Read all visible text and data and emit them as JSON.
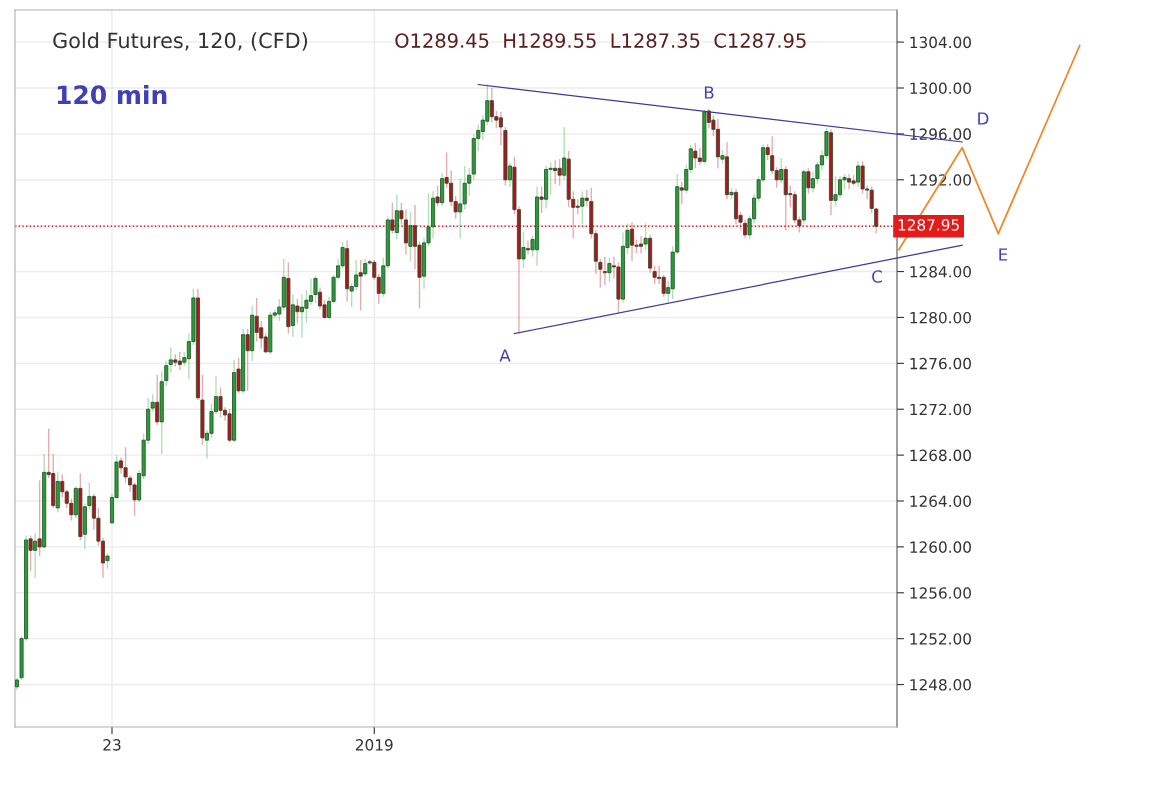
{
  "chart_data": {
    "type": "candlestick",
    "title": "Gold Futures, 120, (CFD)",
    "subtitle": "O1289.45  H1289.55  L1287.35  C1287.95",
    "annotations": [
      "120 min",
      "A",
      "B",
      "C",
      "D",
      "E"
    ],
    "categories": [
      null,
      null,
      null,
      null,
      null,
      null,
      null,
      null,
      null,
      null,
      null,
      null,
      null,
      null,
      null,
      null,
      null,
      null,
      null,
      null,
      null,
      "23",
      null,
      null,
      null,
      null,
      null,
      null,
      null,
      null,
      null,
      null,
      null,
      null,
      null,
      null,
      null,
      null,
      null,
      null,
      null,
      null,
      null,
      null,
      null,
      null,
      null,
      null,
      null,
      null,
      null,
      null,
      null,
      null,
      null,
      null,
      null,
      null,
      null,
      null,
      null,
      null,
      null,
      null,
      null,
      null,
      null,
      null,
      null,
      null,
      null,
      null,
      null,
      null,
      null,
      null,
      null,
      null,
      null,
      "2019",
      null,
      null,
      null,
      null,
      null,
      null,
      null,
      null,
      null,
      null,
      null,
      null,
      null,
      null,
      null,
      null,
      null,
      null,
      null,
      null,
      null,
      null,
      null,
      null,
      null,
      null,
      null,
      null,
      null,
      null,
      null,
      null,
      null,
      null,
      null,
      null,
      null,
      null,
      null,
      null,
      null,
      null,
      null,
      null,
      null,
      null,
      null,
      null,
      null,
      null,
      null,
      null,
      null,
      null,
      null,
      null,
      null,
      null,
      null,
      null,
      null,
      null,
      null,
      null,
      null,
      null,
      null,
      null,
      null,
      null,
      null,
      null,
      null,
      null,
      null,
      null,
      null,
      null,
      null,
      null,
      null,
      null,
      null,
      null,
      null,
      null,
      null,
      null,
      null,
      null,
      null,
      null,
      null,
      null,
      null,
      null,
      null,
      null,
      null,
      null,
      null,
      null,
      null,
      null,
      null,
      null,
      null,
      null,
      null,
      null,
      null,
      null,
      null,
      null,
      null,
      null,
      null,
      null,
      null,
      null,
      null,
      null,
      null,
      null,
      null,
      null,
      null,
      null,
      null,
      null,
      null,
      null,
      null,
      null,
      null,
      null,
      null,
      null,
      null,
      null,
      null,
      null,
      null,
      null,
      null,
      null,
      null,
      null,
      null,
      null,
      null,
      null,
      null,
      null,
      null,
      null
    ],
    "ohlc": [
      [
        1247.8,
        1248.6,
        1247.5,
        1248.4
      ],
      [
        1248.6,
        1252.2,
        1248.4,
        1252.0
      ],
      [
        1252.0,
        1261.0,
        1251.8,
        1260.6
      ],
      [
        1260.7,
        1261.0,
        1257.9,
        1259.7
      ],
      [
        1259.7,
        1261.2,
        1257.3,
        1260.5
      ],
      [
        1260.7,
        1265.8,
        1259.2,
        1260.0
      ],
      [
        1260.0,
        1268.1,
        1259.9,
        1266.5
      ],
      [
        1266.5,
        1270.3,
        1266.0,
        1266.3
      ],
      [
        1266.4,
        1268.1,
        1263.4,
        1263.6
      ],
      [
        1263.4,
        1266.5,
        1263.0,
        1265.7
      ],
      [
        1265.7,
        1266.3,
        1264.3,
        1264.8
      ],
      [
        1264.8,
        1265.0,
        1263.4,
        1263.8
      ],
      [
        1263.8,
        1264.2,
        1262.3,
        1262.8
      ],
      [
        1262.8,
        1265.3,
        1262.5,
        1265.1
      ],
      [
        1265.1,
        1266.4,
        1260.6,
        1260.9
      ],
      [
        1261.1,
        1263.8,
        1259.8,
        1263.5
      ],
      [
        1263.6,
        1265.6,
        1263.3,
        1264.4
      ],
      [
        1264.4,
        1264.6,
        1261.5,
        1262.5
      ],
      [
        1262.5,
        1263.4,
        1260.1,
        1260.5
      ],
      [
        1260.5,
        1260.8,
        1257.3,
        1258.6
      ],
      [
        1258.8,
        1259.4,
        1258.1,
        1259.2
      ],
      [
        1262.1,
        1264.6,
        1262.0,
        1264.3
      ],
      [
        1264.3,
        1268.0,
        1264.2,
        1267.4
      ],
      [
        1267.5,
        1267.8,
        1266.4,
        1266.9
      ],
      [
        1266.9,
        1268.7,
        1265.6,
        1266.1
      ],
      [
        1266.0,
        1266.2,
        1264.8,
        1265.4
      ],
      [
        1265.4,
        1265.6,
        1262.7,
        1264.1
      ],
      [
        1264.1,
        1266.7,
        1263.9,
        1266.4
      ],
      [
        1266.2,
        1269.9,
        1265.9,
        1269.3
      ],
      [
        1269.3,
        1273.0,
        1269.0,
        1272.0
      ],
      [
        1272.1,
        1273.3,
        1271.8,
        1272.6
      ],
      [
        1272.6,
        1275.0,
        1270.6,
        1270.9
      ],
      [
        1270.9,
        1275.3,
        1268.1,
        1274.4
      ],
      [
        1274.5,
        1276.2,
        1274.0,
        1275.8
      ],
      [
        1275.9,
        1277.4,
        1275.2,
        1276.3
      ],
      [
        1276.3,
        1276.8,
        1275.7,
        1276.1
      ],
      [
        1276.2,
        1277.0,
        1275.4,
        1275.9
      ],
      [
        1276.1,
        1277.0,
        1275.8,
        1276.5
      ],
      [
        1276.4,
        1278.6,
        1274.6,
        1277.9
      ],
      [
        1277.9,
        1282.5,
        1277.6,
        1281.7
      ],
      [
        1281.7,
        1282.5,
        1272.8,
        1273.0
      ],
      [
        1272.8,
        1275.0,
        1268.9,
        1269.5
      ],
      [
        1269.3,
        1270.2,
        1267.7,
        1269.9
      ],
      [
        1269.9,
        1272.5,
        1269.5,
        1271.8
      ],
      [
        1271.8,
        1274.9,
        1271.6,
        1273.1
      ],
      [
        1273.1,
        1273.9,
        1271.3,
        1271.9
      ],
      [
        1271.9,
        1272.2,
        1271.0,
        1271.5
      ],
      [
        1271.6,
        1272.0,
        1269.1,
        1269.3
      ],
      [
        1269.3,
        1276.3,
        1269.1,
        1275.2
      ],
      [
        1275.5,
        1276.5,
        1273.4,
        1273.6
      ],
      [
        1273.6,
        1279.0,
        1273.4,
        1278.5
      ],
      [
        1278.5,
        1279.0,
        1273.6,
        1277.1
      ],
      [
        1277.1,
        1281.0,
        1276.2,
        1280.2
      ],
      [
        1280.1,
        1281.7,
        1277.9,
        1278.7
      ],
      [
        1279.1,
        1279.7,
        1277.3,
        1278.2
      ],
      [
        1278.3,
        1278.6,
        1276.9,
        1277.0
      ],
      [
        1277.0,
        1280.5,
        1276.8,
        1280.2
      ],
      [
        1280.2,
        1280.7,
        1279.9,
        1280.4
      ],
      [
        1280.3,
        1281.6,
        1279.7,
        1280.9
      ],
      [
        1280.9,
        1285.1,
        1280.6,
        1283.5
      ],
      [
        1283.4,
        1284.8,
        1278.6,
        1279.2
      ],
      [
        1279.3,
        1282.0,
        1278.3,
        1281.1
      ],
      [
        1281.0,
        1281.6,
        1279.5,
        1280.5
      ],
      [
        1280.5,
        1282.0,
        1278.2,
        1280.9
      ],
      [
        1280.8,
        1282.4,
        1279.5,
        1281.5
      ],
      [
        1281.4,
        1283.4,
        1281.1,
        1281.9
      ],
      [
        1282.0,
        1283.6,
        1281.3,
        1283.4
      ],
      [
        1282.2,
        1282.6,
        1280.7,
        1281.0
      ],
      [
        1281.1,
        1281.5,
        1279.9,
        1280.0
      ],
      [
        1280.0,
        1281.8,
        1279.9,
        1281.4
      ],
      [
        1281.4,
        1283.7,
        1281.2,
        1283.5
      ],
      [
        1283.5,
        1285.1,
        1283.3,
        1284.5
      ],
      [
        1284.5,
        1286.6,
        1284.3,
        1286.1
      ],
      [
        1286.0,
        1286.7,
        1281.4,
        1282.5
      ],
      [
        1282.3,
        1283.0,
        1280.9,
        1282.7
      ],
      [
        1282.7,
        1285.0,
        1282.4,
        1283.7
      ],
      [
        1283.9,
        1285.0,
        1280.6,
        1283.6
      ],
      [
        1283.8,
        1285.1,
        1283.6,
        1284.7
      ],
      [
        1284.85,
        1285.0,
        1284.6,
        1284.75
      ],
      [
        1284.8,
        1285.0,
        1283.3,
        1283.5
      ],
      [
        1283.5,
        1283.8,
        1281.2,
        1282.1
      ],
      [
        1282.1,
        1285.2,
        1281.8,
        1284.5
      ],
      [
        1284.5,
        1288.8,
        1284.3,
        1288.5
      ],
      [
        1288.5,
        1290.0,
        1287.3,
        1287.6
      ],
      [
        1287.4,
        1290.7,
        1286.8,
        1289.3
      ],
      [
        1289.3,
        1290.0,
        1288.1,
        1288.6
      ],
      [
        1288.5,
        1289.4,
        1285.5,
        1286.5
      ],
      [
        1286.2,
        1289.2,
        1284.9,
        1288.0
      ],
      [
        1288.0,
        1289.8,
        1284.2,
        1286.2
      ],
      [
        1286.3,
        1286.6,
        1280.8,
        1283.5
      ],
      [
        1283.6,
        1287.0,
        1282.5,
        1286.5
      ],
      [
        1286.5,
        1290.8,
        1286.2,
        1287.9
      ],
      [
        1287.9,
        1291.0,
        1286.9,
        1290.4
      ],
      [
        1290.5,
        1291.5,
        1289.7,
        1290.0
      ],
      [
        1290.0,
        1292.6,
        1289.7,
        1292.1
      ],
      [
        1292.2,
        1294.4,
        1291.3,
        1291.7
      ],
      [
        1291.7,
        1292.8,
        1289.7,
        1290.1
      ],
      [
        1290.1,
        1290.6,
        1288.6,
        1289.2
      ],
      [
        1289.2,
        1292.1,
        1286.9,
        1289.9
      ],
      [
        1289.9,
        1293.2,
        1289.4,
        1291.7
      ],
      [
        1291.7,
        1293.0,
        1290.6,
        1292.4
      ],
      [
        1292.5,
        1296.0,
        1292.0,
        1295.6
      ],
      [
        1295.6,
        1296.8,
        1294.5,
        1296.3
      ],
      [
        1296.2,
        1297.6,
        1295.5,
        1297.2
      ],
      [
        1297.1,
        1300.3,
        1296.8,
        1298.9
      ],
      [
        1298.9,
        1300.0,
        1297.0,
        1297.5
      ],
      [
        1297.5,
        1298.0,
        1296.5,
        1297.2
      ],
      [
        1297.4,
        1297.9,
        1295.0,
        1296.6
      ],
      [
        1296.3,
        1296.6,
        1291.5,
        1292.0
      ],
      [
        1292.0,
        1293.5,
        1291.4,
        1293.2
      ],
      [
        1293.1,
        1294.0,
        1289.0,
        1289.4
      ],
      [
        1289.4,
        1289.7,
        1278.6,
        1285.1
      ],
      [
        1285.1,
        1287.5,
        1284.3,
        1286.1
      ],
      [
        1286.0,
        1286.7,
        1285.5,
        1285.9
      ],
      [
        1285.9,
        1287.1,
        1285.3,
        1286.8
      ],
      [
        1285.9,
        1291.4,
        1284.5,
        1290.5
      ],
      [
        1290.5,
        1291.4,
        1289.1,
        1290.3
      ],
      [
        1290.3,
        1293.2,
        1289.5,
        1292.9
      ],
      [
        1292.9,
        1293.5,
        1290.7,
        1293.0
      ],
      [
        1293.0,
        1293.7,
        1291.6,
        1292.8
      ],
      [
        1293.0,
        1293.8,
        1291.5,
        1292.4
      ],
      [
        1292.4,
        1296.6,
        1292.0,
        1293.9
      ],
      [
        1293.8,
        1294.5,
        1289.6,
        1290.3
      ],
      [
        1290.3,
        1291.0,
        1286.9,
        1289.6
      ],
      [
        1289.7,
        1290.3,
        1289.0,
        1289.6
      ],
      [
        1289.7,
        1291.0,
        1288.1,
        1290.4
      ],
      [
        1290.4,
        1291.1,
        1289.7,
        1290.2
      ],
      [
        1290.1,
        1291.3,
        1286.9,
        1287.3
      ],
      [
        1287.3,
        1287.6,
        1283.8,
        1284.9
      ],
      [
        1284.8,
        1285.1,
        1282.6,
        1284.2
      ],
      [
        1284.0,
        1285.3,
        1282.8,
        1283.9
      ],
      [
        1283.9,
        1285.2,
        1283.1,
        1284.7
      ],
      [
        1284.5,
        1285.3,
        1283.4,
        1284.4
      ],
      [
        1284.4,
        1284.8,
        1280.4,
        1281.6
      ],
      [
        1281.6,
        1287.4,
        1281.3,
        1286.2
      ],
      [
        1286.1,
        1288.2,
        1285.5,
        1287.6
      ],
      [
        1287.7,
        1288.3,
        1284.9,
        1286.3
      ],
      [
        1286.3,
        1286.8,
        1285.6,
        1286.2
      ],
      [
        1286.4,
        1287.1,
        1285.6,
        1286.2
      ],
      [
        1286.4,
        1288.2,
        1285.9,
        1286.9
      ],
      [
        1286.9,
        1287.2,
        1283.9,
        1284.3
      ],
      [
        1284.0,
        1284.5,
        1282.9,
        1283.5
      ],
      [
        1283.5,
        1284.5,
        1282.9,
        1283.4
      ],
      [
        1283.5,
        1283.7,
        1281.8,
        1282.1
      ],
      [
        1282.1,
        1283.2,
        1281.3,
        1282.6
      ],
      [
        1282.5,
        1286.2,
        1281.6,
        1285.7
      ],
      [
        1285.7,
        1292.5,
        1285.5,
        1291.4
      ],
      [
        1291.3,
        1291.8,
        1289.9,
        1291.1
      ],
      [
        1291.1,
        1293.3,
        1290.8,
        1292.9
      ],
      [
        1292.9,
        1295.0,
        1292.6,
        1294.7
      ],
      [
        1294.5,
        1295.2,
        1293.0,
        1293.9
      ],
      [
        1293.9,
        1294.8,
        1293.3,
        1293.6
      ],
      [
        1293.6,
        1298.1,
        1293.4,
        1297.9
      ],
      [
        1298.0,
        1298.2,
        1296.5,
        1297.0
      ],
      [
        1297.2,
        1297.6,
        1295.8,
        1296.4
      ],
      [
        1296.4,
        1297.3,
        1293.0,
        1294.0
      ],
      [
        1293.8,
        1294.6,
        1293.4,
        1294.1
      ],
      [
        1294.0,
        1295.3,
        1290.3,
        1290.7
      ],
      [
        1290.7,
        1291.3,
        1290.3,
        1290.9
      ],
      [
        1290.9,
        1291.2,
        1288.1,
        1288.6
      ],
      [
        1288.9,
        1289.2,
        1287.6,
        1288.3
      ],
      [
        1288.2,
        1288.5,
        1286.9,
        1287.2
      ],
      [
        1287.2,
        1288.9,
        1286.8,
        1288.6
      ],
      [
        1288.6,
        1290.8,
        1288.2,
        1290.4
      ],
      [
        1290.4,
        1292.3,
        1290.1,
        1292.0
      ],
      [
        1292.0,
        1295.1,
        1291.8,
        1294.8
      ],
      [
        1294.8,
        1295.1,
        1293.7,
        1294.2
      ],
      [
        1294.1,
        1295.8,
        1292.5,
        1292.8
      ],
      [
        1292.8,
        1293.1,
        1291.3,
        1292.0
      ],
      [
        1292.0,
        1293.9,
        1291.7,
        1292.9
      ],
      [
        1292.9,
        1293.2,
        1287.6,
        1290.7
      ],
      [
        1290.8,
        1291.5,
        1289.6,
        1290.7
      ],
      [
        1290.7,
        1291.0,
        1288.2,
        1288.5
      ],
      [
        1288.5,
        1288.8,
        1287.4,
        1288.0
      ],
      [
        1288.5,
        1292.9,
        1288.2,
        1292.7
      ],
      [
        1292.7,
        1293.0,
        1290.8,
        1291.3
      ],
      [
        1291.3,
        1292.7,
        1290.9,
        1292.1
      ],
      [
        1292.1,
        1293.6,
        1291.6,
        1293.3
      ],
      [
        1293.3,
        1294.6,
        1292.8,
        1294.1
      ],
      [
        1294.1,
        1296.5,
        1293.8,
        1296.2
      ],
      [
        1296.1,
        1296.4,
        1288.9,
        1290.2
      ],
      [
        1290.2,
        1292.3,
        1289.7,
        1290.7
      ],
      [
        1290.7,
        1292.3,
        1290.4,
        1292.0
      ],
      [
        1292.0,
        1292.5,
        1291.1,
        1292.2
      ],
      [
        1292.1,
        1292.5,
        1291.2,
        1291.8
      ],
      [
        1291.9,
        1292.4,
        1291.5,
        1291.7
      ],
      [
        1291.8,
        1293.6,
        1291.4,
        1293.2
      ],
      [
        1293.2,
        1293.6,
        1290.8,
        1291.2
      ],
      [
        1291.2,
        1291.5,
        1290.3,
        1291.1
      ],
      [
        1291.1,
        1291.4,
        1289.1,
        1289.5
      ],
      [
        1289.45,
        1289.55,
        1287.35,
        1287.95
      ],
      null,
      null,
      null,
      null,
      null,
      null,
      null,
      null,
      null,
      null,
      null,
      null,
      null,
      null,
      null,
      null,
      null,
      null,
      null,
      null,
      null,
      null,
      null,
      null,
      null,
      null,
      null,
      null,
      null,
      null,
      null,
      null,
      null,
      null,
      null,
      null,
      null,
      null,
      null,
      null,
      null,
      null,
      null,
      null,
      null
    ],
    "colors": [
      "#23a234",
      "#23a234",
      "#23a234",
      "#b1141b",
      "#23a234",
      "#b1141b",
      "#23a234",
      "#b1141b",
      "#b1141b",
      "#23a234",
      "#b1141b",
      "#b1141b",
      "#b1141b",
      "#23a234",
      "#b1141b",
      "#23a234",
      "#23a234",
      "#b1141b",
      "#b1141b",
      "#b1141b",
      "#23a234",
      "#23a234",
      "#23a234",
      "#b1141b",
      "#b1141b",
      "#b1141b",
      "#b1141b",
      "#23a234",
      "#23a234",
      "#23a234",
      "#23a234",
      "#b1141b",
      "#23a234",
      "#23a234",
      "#23a234",
      "#b1141b",
      "#b1141b",
      "#23a234",
      "#23a234",
      "#23a234",
      "#b1141b",
      "#b1141b",
      "#23a234",
      "#23a234",
      "#23a234",
      "#b1141b",
      "#b1141b",
      "#b1141b",
      "#23a234",
      "#b1141b",
      "#23a234",
      "#b1141b",
      "#23a234",
      "#b1141b",
      "#b1141b",
      "#b1141b",
      "#23a234",
      "#23a234",
      "#23a234",
      "#23a234",
      "#b1141b",
      "#23a234",
      "#b1141b",
      "#23a234",
      "#23a234",
      "#23a234",
      "#23a234",
      "#b1141b",
      "#b1141b",
      "#23a234",
      "#23a234",
      "#23a234",
      "#23a234",
      "#b1141b",
      "#23a234",
      "#23a234",
      "#b1141b",
      "#23a234",
      "#b1141b",
      "#b1141b",
      "#b1141b",
      "#23a234",
      "#23a234",
      "#b1141b",
      "#23a234",
      "#b1141b",
      "#b1141b",
      "#23a234",
      "#b1141b",
      "#b1141b",
      "#23a234",
      "#23a234",
      "#23a234",
      "#b1141b",
      "#23a234",
      "#b1141b",
      "#b1141b",
      "#b1141b",
      "#23a234",
      "#23a234",
      "#23a234",
      "#23a234",
      "#23a234",
      "#23a234",
      "#23a234",
      "#b1141b",
      "#b1141b",
      "#b1141b",
      "#b1141b",
      "#23a234",
      "#b1141b",
      "#b1141b",
      "#23a234",
      "#b1141b",
      "#23a234",
      "#23a234",
      "#b1141b",
      "#23a234",
      "#23a234",
      "#b1141b",
      "#b1141b",
      "#23a234",
      "#b1141b",
      "#b1141b",
      "#b1141b",
      "#23a234",
      "#b1141b",
      "#b1141b",
      "#b1141b",
      "#b1141b",
      "#b1141b",
      "#23a234",
      "#b1141b",
      "#b1141b",
      "#23a234",
      "#23a234",
      "#b1141b",
      "#b1141b",
      "#b1141b",
      "#23a234",
      "#b1141b",
      "#b1141b",
      "#b1141b",
      "#b1141b",
      "#23a234",
      "#23a234",
      "#23a234",
      "#b1141b",
      "#23a234",
      "#23a234",
      "#b1141b",
      "#b1141b",
      "#23a234",
      "#b1141b",
      "#b1141b",
      "#b1141b",
      "#23a234",
      "#b1141b",
      "#23a234",
      "#b1141b",
      "#b1141b",
      "#b1141b",
      "#23a234",
      "#23a234",
      "#23a234",
      "#23a234",
      "#b1141b",
      "#b1141b",
      "#b1141b",
      "#23a234",
      "#b1141b",
      "#b1141b",
      "#b1141b",
      "#b1141b",
      "#23a234",
      "#b1141b",
      "#23a234",
      "#23a234",
      "#23a234",
      "#23a234",
      "#b1141b",
      "#23a234",
      "#23a234",
      "#23a234",
      "#b1141b",
      "#b1141b",
      "#23a234",
      "#b1141b",
      "#b1141b",
      "#b1141b",
      "#b1141b",
      null,
      null,
      null,
      null,
      null,
      null,
      null,
      null,
      null,
      null,
      null,
      null,
      null,
      null,
      null,
      null,
      null,
      null,
      null,
      null,
      null,
      null,
      null,
      null,
      null,
      null,
      null,
      null,
      null,
      null,
      null,
      null,
      null,
      null,
      null,
      null,
      null,
      null,
      null,
      null,
      null,
      null,
      null,
      null,
      null
    ],
    "series": [
      {
        "type": "line",
        "color": "#3a3a9a",
        "values": [
          null,
          null,
          null,
          null,
          null,
          null,
          null,
          null,
          null,
          null,
          null,
          null,
          null,
          null,
          null,
          null,
          null,
          null,
          null,
          null,
          null,
          null,
          null,
          null,
          null,
          null,
          null,
          null,
          null,
          null,
          null,
          null,
          null,
          null,
          null,
          null,
          null,
          null,
          null,
          null,
          null,
          null,
          null,
          null,
          null,
          null,
          null,
          null,
          null,
          null,
          null,
          null,
          null,
          null,
          null,
          null,
          null,
          null,
          null,
          null,
          null,
          null,
          null,
          null,
          null,
          null,
          null,
          null,
          null,
          null,
          null,
          null,
          null,
          null,
          null,
          null,
          null,
          null,
          null,
          null,
          null,
          null,
          null,
          null,
          null,
          null,
          null,
          null,
          null,
          null,
          null,
          null,
          null,
          null,
          null,
          null,
          null,
          null,
          null,
          null,
          null,
          null,
          1300.3,
          null,
          null,
          null,
          null,
          null,
          null,
          null,
          null,
          null,
          null,
          null,
          null,
          null,
          null,
          null,
          null,
          null,
          null,
          null,
          null,
          null,
          null,
          null,
          null,
          null,
          null,
          null,
          null,
          null,
          null,
          null,
          null,
          null,
          null,
          null,
          null,
          null,
          null,
          null,
          null,
          null,
          null,
          null,
          null,
          null,
          null,
          null,
          null,
          null,
          null,
          null,
          null,
          null,
          null,
          null,
          null,
          null,
          null,
          null,
          null,
          null,
          null,
          null,
          null,
          null,
          null,
          null,
          null,
          null,
          null,
          null,
          null,
          null,
          null,
          null,
          null,
          null,
          null,
          null,
          null,
          null,
          null,
          null,
          null,
          null,
          null,
          null,
          null,
          null,
          null,
          null,
          null,
          null,
          null,
          null,
          null,
          null,
          null,
          null,
          null,
          null,
          null,
          null,
          null,
          null,
          null,
          1295.3,
          null,
          null,
          null,
          null,
          null,
          null,
          null,
          null,
          null,
          null,
          null,
          null,
          null,
          null,
          null,
          null,
          null,
          null,
          null,
          null,
          null,
          null,
          null,
          null,
          null,
          null
        ]
      },
      {
        "type": "line",
        "color": "#3a3a9a",
        "values": [
          null,
          null,
          null,
          null,
          null,
          null,
          null,
          null,
          null,
          null,
          null,
          null,
          null,
          null,
          null,
          null,
          null,
          null,
          null,
          null,
          null,
          null,
          null,
          null,
          null,
          null,
          null,
          null,
          null,
          null,
          null,
          null,
          null,
          null,
          null,
          null,
          null,
          null,
          null,
          null,
          null,
          null,
          null,
          null,
          null,
          null,
          null,
          null,
          null,
          null,
          null,
          null,
          null,
          null,
          null,
          null,
          null,
          null,
          null,
          null,
          null,
          null,
          null,
          null,
          null,
          null,
          null,
          null,
          null,
          null,
          null,
          null,
          null,
          null,
          null,
          null,
          null,
          null,
          null,
          null,
          null,
          null,
          null,
          null,
          null,
          null,
          null,
          null,
          null,
          null,
          null,
          null,
          null,
          null,
          null,
          null,
          null,
          null,
          null,
          null,
          null,
          null,
          null,
          null,
          null,
          null,
          null,
          null,
          null,
          null,
          1278.6,
          null,
          null,
          null,
          null,
          null,
          null,
          null,
          null,
          null,
          null,
          null,
          null,
          null,
          null,
          null,
          null,
          null,
          null,
          null,
          null,
          null,
          null,
          null,
          null,
          null,
          null,
          null,
          null,
          null,
          null,
          null,
          null,
          null,
          null,
          null,
          null,
          null,
          null,
          null,
          null,
          null,
          null,
          null,
          null,
          null,
          null,
          null,
          null,
          null,
          null,
          null,
          null,
          null,
          null,
          null,
          null,
          null,
          null,
          null,
          null,
          null,
          null,
          null,
          null,
          null,
          null,
          null,
          null,
          null,
          null,
          null,
          null,
          null,
          null,
          null,
          null,
          null,
          null,
          null,
          null,
          null,
          null,
          null,
          null,
          null,
          null,
          null,
          null,
          null,
          null,
          null,
          null,
          null,
          null,
          null,
          null,
          null,
          null,
          1286.3,
          null,
          null,
          null,
          null,
          null,
          null,
          null,
          null,
          null,
          null,
          null,
          null,
          null,
          null,
          null,
          null,
          null,
          null,
          null,
          null,
          null,
          null,
          null,
          null,
          null,
          null
        ]
      },
      {
        "type": "line",
        "color": "#f0892e",
        "values": [
          null,
          null,
          null,
          null,
          null,
          null,
          null,
          null,
          null,
          null,
          null,
          null,
          null,
          null,
          null,
          null,
          null,
          null,
          null,
          null,
          null,
          null,
          null,
          null,
          null,
          null,
          null,
          null,
          null,
          null,
          null,
          null,
          null,
          null,
          null,
          null,
          null,
          null,
          null,
          null,
          null,
          null,
          null,
          null,
          null,
          null,
          null,
          null,
          null,
          null,
          null,
          null,
          null,
          null,
          null,
          null,
          null,
          null,
          null,
          null,
          null,
          null,
          null,
          null,
          null,
          null,
          null,
          null,
          null,
          null,
          null,
          null,
          null,
          null,
          null,
          null,
          null,
          null,
          null,
          null,
          null,
          null,
          null,
          null,
          null,
          null,
          null,
          null,
          null,
          null,
          null,
          null,
          null,
          null,
          null,
          null,
          null,
          null,
          null,
          null,
          null,
          null,
          null,
          null,
          null,
          null,
          null,
          null,
          null,
          null,
          null,
          null,
          null,
          null,
          null,
          null,
          null,
          null,
          null,
          null,
          null,
          null,
          null,
          null,
          null,
          null,
          null,
          null,
          null,
          null,
          null,
          null,
          null,
          null,
          null,
          null,
          null,
          null,
          null,
          null,
          null,
          null,
          null,
          null,
          null,
          null,
          null,
          null,
          null,
          null,
          null,
          null,
          null,
          null,
          null,
          null,
          null,
          null,
          null,
          null,
          null,
          null,
          null,
          null,
          null,
          null,
          null,
          null,
          null,
          null,
          null,
          null,
          null,
          null,
          null,
          null,
          null,
          null,
          null,
          null,
          null,
          null,
          null,
          null,
          null,
          null,
          null,
          null,
          null,
          null,
          null,
          null,
          null,
          null,
          null,
          1285.9,
          null,
          null,
          null,
          null,
          null,
          null,
          null,
          null,
          null,
          null,
          null,
          null,
          null,
          1294.8,
          null,
          null,
          null,
          null,
          null,
          null,
          null,
          1287.3,
          null,
          null,
          null,
          null,
          null,
          null,
          null,
          null,
          null,
          null,
          null,
          null,
          null,
          null,
          null,
          null,
          null,
          1303.7
        ]
      }
    ],
    "ref_lines": [
      {
        "axis": "y",
        "value": 1287.95,
        "label": "1287.95",
        "color": "#e31b1b",
        "line_style": "dotted"
      }
    ],
    "ylim": [
      1244.3,
      1306.8
    ],
    "yticks": [
      {
        "value": 1248,
        "label": "1248.00"
      },
      {
        "value": 1252,
        "label": "1252.00"
      },
      {
        "value": 1256,
        "label": "1256.00"
      },
      {
        "value": 1260,
        "label": "1260.00"
      },
      {
        "value": 1264,
        "label": "1264.00"
      },
      {
        "value": 1268,
        "label": "1268.00"
      },
      {
        "value": 1272,
        "label": "1272.00"
      },
      {
        "value": 1276,
        "label": "1276.00"
      },
      {
        "value": 1280,
        "label": "1280.00"
      },
      {
        "value": 1284,
        "label": "1284.00"
      },
      {
        "value": 1288,
        "label": null
      },
      {
        "value": 1292,
        "label": "1292.00"
      },
      {
        "value": 1296,
        "label": "1296.00"
      },
      {
        "value": 1300,
        "label": "1300.00"
      },
      {
        "value": 1304,
        "label": "1304.00"
      }
    ],
    "grid": true,
    "legend": false
  }
}
